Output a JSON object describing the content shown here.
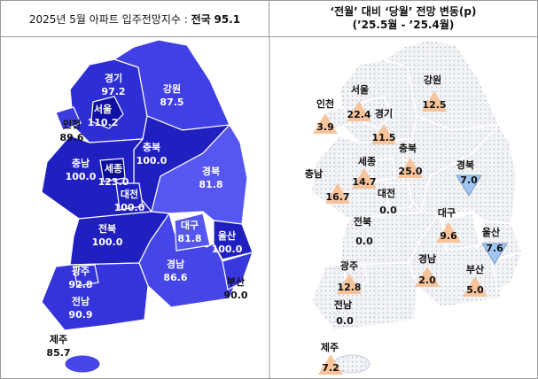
{
  "left": {
    "title": "2025년 5월 아파트 입주전망지수 :",
    "national_label": "전국",
    "national_value": "95.1",
    "regions": [
      {
        "name": "경기",
        "value": "97.2",
        "color": "#2e2ed6"
      },
      {
        "name": "서울",
        "value": "110.2",
        "color": "#1010a4"
      },
      {
        "name": "인천",
        "value": "89.6",
        "color": "#3c3ce2"
      },
      {
        "name": "강원",
        "value": "87.5",
        "color": "#4040e4"
      },
      {
        "name": "충북",
        "value": "100.0",
        "color": "#2020c0"
      },
      {
        "name": "충남",
        "value": "100.0",
        "color": "#2020c0"
      },
      {
        "name": "세종",
        "value": "123.0",
        "color": "#0c0c9c"
      },
      {
        "name": "대전",
        "value": "100.0",
        "color": "#2020c0"
      },
      {
        "name": "경북",
        "value": "81.8",
        "color": "#5656f0"
      },
      {
        "name": "대구",
        "value": "81.8",
        "color": "#5656f0"
      },
      {
        "name": "울산",
        "value": "100.0",
        "color": "#2020c0"
      },
      {
        "name": "전북",
        "value": "100.0",
        "color": "#2020c0"
      },
      {
        "name": "광주",
        "value": "92.8",
        "color": "#3434da"
      },
      {
        "name": "경남",
        "value": "86.6",
        "color": "#4646e8"
      },
      {
        "name": "부산",
        "value": "90.0",
        "color": "#3838dc"
      },
      {
        "name": "전남",
        "value": "90.9",
        "color": "#3434da"
      },
      {
        "name": "제주",
        "value": "85.7",
        "color": "#4646e8"
      }
    ]
  },
  "right": {
    "title_line1": "‘전월’ 대비 ‘당월’ 전망 변동(p)",
    "title_line2": "(’25.5월 - ’25.4월)",
    "up_color": "#f6c39b",
    "down_color": "#9fc5f0",
    "regions": [
      {
        "name": "경기",
        "value": "11.5",
        "trend": "up"
      },
      {
        "name": "서울",
        "value": "22.4",
        "trend": "up"
      },
      {
        "name": "인천",
        "value": "3.9",
        "trend": "up"
      },
      {
        "name": "강원",
        "value": "12.5",
        "trend": "up"
      },
      {
        "name": "충북",
        "value": "25.0",
        "trend": "up"
      },
      {
        "name": "충남",
        "value": "16.7",
        "trend": "up"
      },
      {
        "name": "세종",
        "value": "14.7",
        "trend": "up"
      },
      {
        "name": "대전",
        "value": "0.0",
        "trend": "none"
      },
      {
        "name": "경북",
        "value": "7.0",
        "trend": "down"
      },
      {
        "name": "대구",
        "value": "9.6",
        "trend": "up"
      },
      {
        "name": "울산",
        "value": "7.6",
        "trend": "down"
      },
      {
        "name": "전북",
        "value": "0.0",
        "trend": "none"
      },
      {
        "name": "광주",
        "value": "12.8",
        "trend": "up"
      },
      {
        "name": "경남",
        "value": "2.0",
        "trend": "up"
      },
      {
        "name": "부산",
        "value": "5.0",
        "trend": "up"
      },
      {
        "name": "전남",
        "value": "0.0",
        "trend": "none"
      },
      {
        "name": "제주",
        "value": "7.2",
        "trend": "up"
      }
    ]
  }
}
